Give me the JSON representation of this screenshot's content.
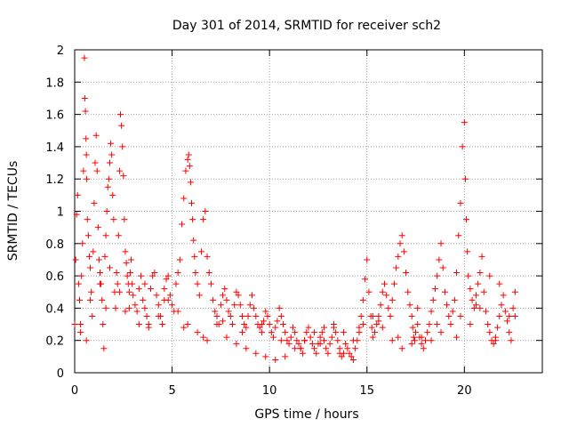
{
  "chart_data": {
    "type": "scatter",
    "title": "Day 301 of 2014, SRMTID for receiver sch2",
    "xlabel": "GPS time / hours",
    "ylabel": "SRMTID / TECUs",
    "xlim": [
      0,
      24
    ],
    "ylim": [
      0,
      2
    ],
    "x_ticks": [
      "0",
      "5",
      "10",
      "15",
      "20"
    ],
    "y_ticks": [
      "0",
      "0.2",
      "0.4",
      "0.6",
      "0.8",
      "1",
      "1.2",
      "1.4",
      "1.6",
      "1.8",
      "2"
    ],
    "grid": true,
    "marker": "+",
    "series": [
      {
        "name": "sch2",
        "color": "#ff0000",
        "x": [
          0.0,
          0.05,
          0.1,
          0.15,
          0.2,
          0.25,
          0.3,
          0.35,
          0.4,
          0.45,
          0.5,
          0.52,
          0.55,
          0.58,
          0.6,
          0.62,
          0.65,
          0.7,
          0.75,
          0.8,
          0.85,
          0.9,
          0.95,
          1.0,
          1.05,
          1.1,
          1.15,
          1.2,
          1.25,
          1.3,
          1.35,
          1.4,
          1.45,
          1.5,
          1.55,
          1.6,
          1.65,
          1.7,
          1.75,
          1.8,
          1.85,
          1.9,
          1.95,
          2.0,
          2.05,
          2.1,
          2.15,
          2.2,
          2.25,
          2.3,
          2.35,
          2.4,
          2.45,
          2.5,
          2.55,
          2.6,
          2.65,
          2.7,
          2.75,
          2.8,
          2.85,
          2.9,
          2.95,
          3.0,
          3.1,
          3.2,
          3.3,
          3.4,
          3.5,
          3.6,
          3.7,
          3.8,
          3.9,
          4.0,
          4.1,
          4.2,
          4.3,
          4.4,
          4.5,
          4.6,
          4.7,
          4.8,
          4.9,
          5.0,
          5.1,
          5.2,
          5.3,
          5.4,
          5.5,
          5.6,
          5.7,
          5.8,
          5.85,
          5.9,
          5.95,
          6.0,
          6.05,
          6.1,
          6.15,
          6.2,
          6.3,
          6.4,
          6.5,
          6.6,
          6.7,
          6.8,
          6.9,
          7.0,
          7.1,
          7.2,
          7.3,
          7.4,
          7.5,
          7.6,
          7.7,
          7.8,
          7.9,
          8.0,
          8.1,
          8.2,
          8.3,
          8.4,
          8.5,
          8.6,
          8.7,
          8.8,
          8.9,
          9.0,
          9.1,
          9.2,
          9.3,
          9.4,
          9.5,
          9.6,
          9.7,
          9.8,
          9.9,
          10.0,
          10.1,
          10.2,
          10.3,
          10.4,
          10.5,
          10.6,
          10.7,
          10.8,
          10.9,
          11.0,
          11.1,
          11.2,
          11.3,
          11.4,
          11.5,
          11.6,
          11.7,
          11.8,
          11.9,
          12.0,
          12.1,
          12.2,
          12.3,
          12.4,
          12.5,
          12.6,
          12.7,
          12.8,
          12.9,
          13.0,
          13.1,
          13.2,
          13.3,
          13.4,
          13.5,
          13.6,
          13.7,
          13.8,
          13.9,
          14.0,
          14.1,
          14.2,
          14.3,
          14.4,
          14.5,
          14.6,
          14.7,
          14.8,
          14.9,
          15.0,
          15.1,
          15.2,
          15.25,
          15.3,
          15.4,
          15.5,
          15.6,
          15.7,
          15.8,
          15.9,
          16.0,
          16.1,
          16.2,
          16.3,
          16.4,
          16.5,
          16.6,
          16.7,
          16.8,
          16.9,
          17.0,
          17.1,
          17.2,
          17.3,
          17.35,
          17.4,
          17.45,
          17.5,
          17.6,
          17.7,
          17.8,
          17.9,
          18.0,
          18.1,
          18.2,
          18.3,
          18.4,
          18.5,
          18.6,
          18.7,
          18.8,
          18.9,
          19.0,
          19.1,
          19.2,
          19.3,
          19.4,
          19.5,
          19.6,
          19.7,
          19.8,
          19.9,
          20.0,
          20.05,
          20.1,
          20.15,
          20.2,
          20.3,
          20.4,
          20.5,
          20.6,
          20.7,
          20.8,
          20.9,
          21.0,
          21.1,
          21.2,
          21.3,
          21.4,
          21.5,
          21.6,
          21.7,
          21.8,
          21.9,
          22.0,
          22.1,
          22.2,
          22.3,
          22.4,
          22.5,
          22.6,
          0.3,
          0.8,
          1.3,
          1.8,
          2.3,
          2.8,
          3.3,
          3.8,
          4.3,
          4.8,
          5.3,
          5.8,
          6.3,
          6.8,
          7.3,
          7.8,
          8.3,
          8.8,
          9.3,
          9.8,
          10.3,
          10.8,
          11.3,
          11.8,
          12.3,
          12.8,
          13.3,
          13.8,
          14.3,
          14.8,
          15.3,
          15.8,
          16.3,
          16.8,
          17.3,
          17.8,
          18.3,
          18.8,
          19.3,
          19.8,
          20.3,
          20.8,
          21.3,
          21.8,
          22.3,
          0.6,
          1.6,
          2.6,
          3.6,
          4.6,
          5.6,
          6.6,
          7.6,
          8.6,
          9.6,
          10.6,
          11.6,
          12.6,
          13.6,
          14.6,
          15.6,
          16.6,
          17.6,
          18.6,
          19.6,
          20.6,
          21.6,
          22.6
        ],
        "y": [
          0.3,
          0.7,
          0.98,
          1.1,
          0.55,
          0.45,
          0.25,
          0.6,
          0.8,
          1.25,
          1.95,
          1.7,
          1.62,
          1.45,
          1.35,
          1.2,
          0.95,
          0.85,
          0.72,
          0.65,
          0.5,
          0.35,
          0.75,
          1.05,
          1.3,
          1.47,
          1.25,
          0.9,
          0.7,
          0.62,
          0.55,
          0.45,
          0.3,
          0.15,
          0.72,
          0.85,
          1.0,
          1.15,
          1.2,
          1.3,
          1.42,
          1.35,
          1.1,
          0.95,
          0.5,
          0.4,
          0.62,
          0.55,
          0.85,
          1.25,
          1.6,
          1.53,
          1.4,
          1.22,
          0.95,
          0.75,
          0.68,
          0.6,
          0.55,
          0.5,
          0.62,
          0.7,
          0.55,
          0.48,
          0.42,
          0.38,
          0.52,
          0.6,
          0.45,
          0.4,
          0.35,
          0.3,
          0.52,
          0.6,
          0.62,
          0.48,
          0.42,
          0.35,
          0.3,
          0.52,
          0.58,
          0.6,
          0.48,
          0.42,
          0.38,
          0.55,
          0.62,
          0.7,
          0.92,
          1.08,
          1.25,
          1.32,
          1.35,
          1.28,
          1.18,
          1.05,
          0.95,
          0.82,
          0.72,
          0.62,
          0.55,
          0.48,
          0.75,
          0.95,
          1.0,
          0.72,
          0.62,
          0.55,
          0.45,
          0.38,
          0.35,
          0.3,
          0.42,
          0.48,
          0.52,
          0.45,
          0.38,
          0.35,
          0.3,
          0.42,
          0.5,
          0.48,
          0.42,
          0.35,
          0.3,
          0.28,
          0.35,
          0.42,
          0.48,
          0.4,
          0.35,
          0.3,
          0.28,
          0.25,
          0.32,
          0.38,
          0.35,
          0.3,
          0.25,
          0.22,
          0.28,
          0.32,
          0.4,
          0.35,
          0.3,
          0.25,
          0.2,
          0.18,
          0.22,
          0.28,
          0.25,
          0.2,
          0.18,
          0.15,
          0.12,
          0.2,
          0.25,
          0.28,
          0.22,
          0.18,
          0.15,
          0.12,
          0.18,
          0.22,
          0.25,
          0.2,
          0.15,
          0.12,
          0.18,
          0.22,
          0.28,
          0.25,
          0.2,
          0.15,
          0.1,
          0.12,
          0.18,
          0.15,
          0.12,
          0.1,
          0.08,
          0.15,
          0.2,
          0.25,
          0.35,
          0.45,
          0.58,
          0.7,
          0.5,
          0.35,
          0.28,
          0.22,
          0.25,
          0.3,
          0.35,
          0.42,
          0.5,
          0.55,
          0.48,
          0.4,
          0.35,
          0.45,
          0.55,
          0.65,
          0.72,
          0.8,
          0.85,
          0.75,
          0.62,
          0.5,
          0.42,
          0.35,
          0.28,
          0.22,
          0.2,
          0.25,
          0.3,
          0.22,
          0.18,
          0.15,
          0.2,
          0.25,
          0.3,
          0.38,
          0.45,
          0.52,
          0.6,
          0.7,
          0.8,
          0.65,
          0.5,
          0.42,
          0.35,
          0.3,
          0.38,
          0.45,
          0.62,
          0.85,
          1.05,
          1.4,
          1.55,
          1.2,
          0.95,
          0.75,
          0.6,
          0.52,
          0.45,
          0.4,
          0.48,
          0.55,
          0.62,
          0.72,
          0.5,
          0.38,
          0.3,
          0.25,
          0.2,
          0.18,
          0.22,
          0.28,
          0.35,
          0.42,
          0.48,
          0.38,
          0.32,
          0.25,
          0.2,
          0.4,
          0.5,
          0.3,
          0.45,
          0.55,
          0.65,
          0.5,
          0.4,
          0.3,
          0.28,
          0.35,
          0.45,
          0.38,
          0.3,
          0.25,
          0.2,
          0.3,
          0.22,
          0.18,
          0.15,
          0.12,
          0.1,
          0.08,
          0.1,
          0.15,
          0.2,
          0.25,
          0.28,
          0.3,
          0.25,
          0.2,
          0.3,
          0.35,
          0.28,
          0.2,
          0.15,
          0.18,
          0.22,
          0.2,
          0.25,
          0.3,
          0.35,
          0.3,
          0.4,
          0.6,
          0.55,
          0.35,
          0.2,
          0.4,
          0.38,
          0.55,
          0.45,
          0.28,
          0.22,
          0.32,
          0.25,
          0.3,
          0.2,
          0.15,
          0.18,
          0.12,
          0.28,
          0.32,
          0.22,
          0.4,
          0.3,
          0.22,
          0.42,
          0.2,
          0.35
        ]
      }
    ]
  }
}
